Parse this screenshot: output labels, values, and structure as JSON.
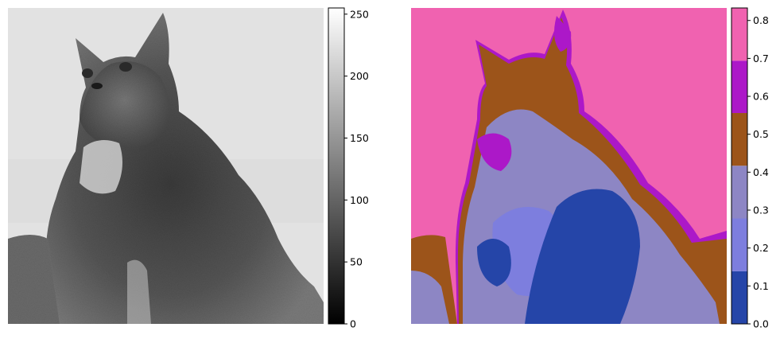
{
  "panels": [
    {
      "id": "grayscale",
      "image_subject": "long-haired cat",
      "colormap": "gray",
      "colorbar": {
        "type": "continuous",
        "range": [
          0,
          255
        ],
        "ticks": [
          "0",
          "50",
          "100",
          "150",
          "200",
          "250"
        ],
        "tick_values": [
          0,
          50,
          100,
          150,
          200,
          250
        ]
      }
    },
    {
      "id": "quantized",
      "image_subject": "long-haired cat",
      "colormap": "discrete",
      "colorbar": {
        "type": "discrete",
        "range": [
          0,
          0.833
        ],
        "ticks": [
          "0.0",
          "0.1",
          "0.2",
          "0.3",
          "0.4",
          "0.5",
          "0.6",
          "0.7",
          "0.8"
        ],
        "tick_values": [
          0,
          0.1,
          0.2,
          0.3,
          0.4,
          0.5,
          0.6,
          0.7,
          0.8
        ],
        "bands": [
          {
            "from": 0.0,
            "to": 0.139,
            "color": "#2545a8"
          },
          {
            "from": 0.139,
            "to": 0.278,
            "color": "#7d7ede"
          },
          {
            "from": 0.278,
            "to": 0.417,
            "color": "#8d86c4"
          },
          {
            "from": 0.417,
            "to": 0.556,
            "color": "#9c541a"
          },
          {
            "from": 0.556,
            "to": 0.694,
            "color": "#ac18c8"
          },
          {
            "from": 0.694,
            "to": 0.833,
            "color": "#f062b0"
          }
        ]
      }
    }
  ]
}
